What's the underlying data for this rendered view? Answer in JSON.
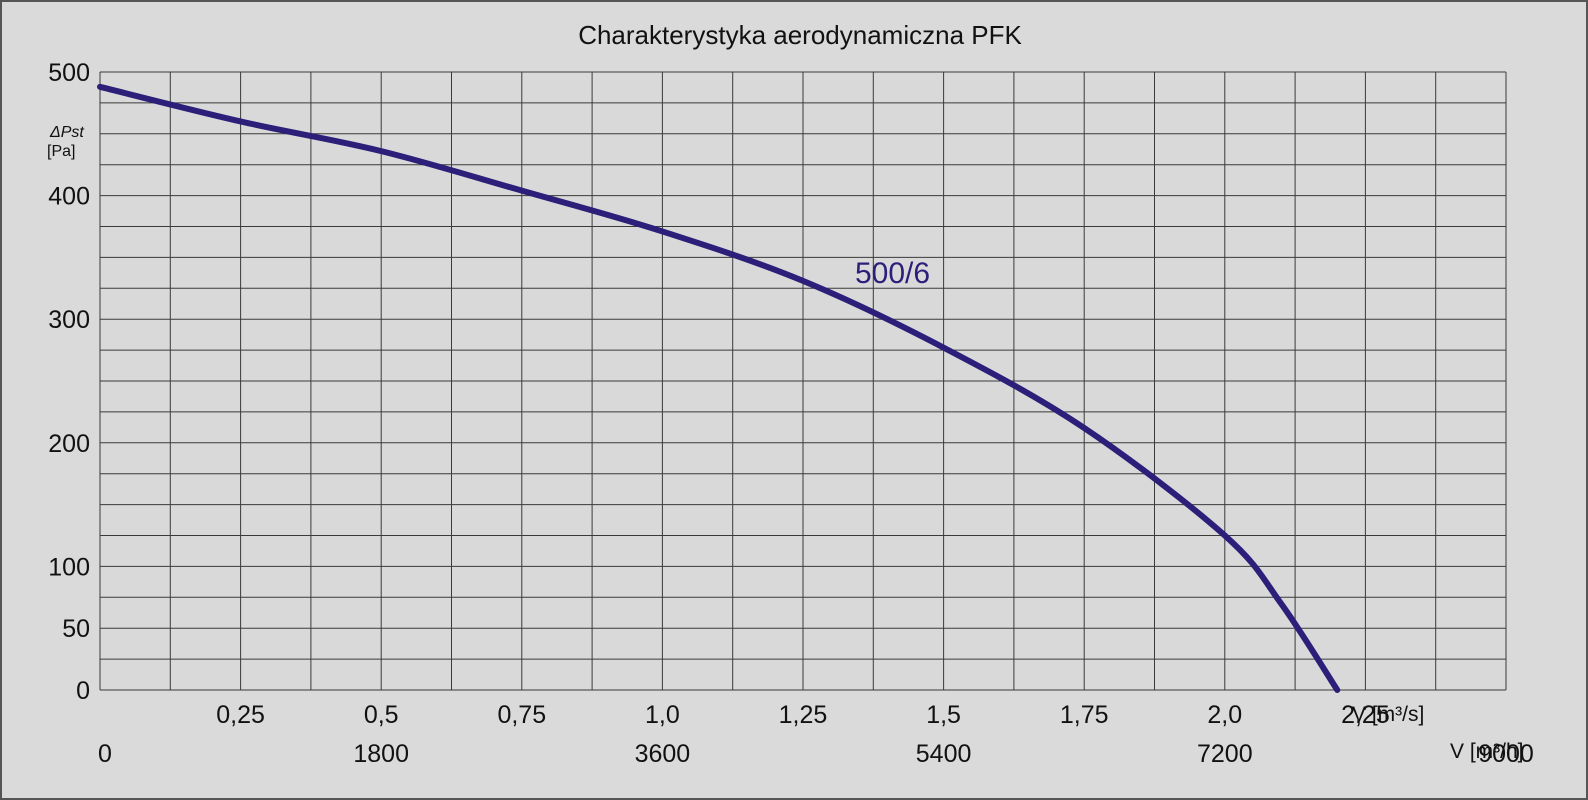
{
  "chart_data": {
    "type": "line",
    "title": "Charakterystyka aerodynamiczna PFK",
    "ylabel": {
      "symbol": "ΔPst",
      "unit": "[Pa]"
    },
    "x_axis_label": "V [m³/s]",
    "x2_axis_label": "V [m³/h]",
    "xlim": [
      0,
      2.5
    ],
    "ylim": [
      0,
      500
    ],
    "y_ticks": [
      "500",
      "400",
      "300",
      "200",
      "100",
      "50",
      "0"
    ],
    "y_tick_values": [
      500,
      400,
      300,
      200,
      100,
      50,
      0
    ],
    "x_ticks": [
      "0,25",
      "0,5",
      "0,75",
      "1,0",
      "1,25",
      "1,5",
      "1,75",
      "2,0",
      "2,25"
    ],
    "x_tick_values": [
      0.25,
      0.5,
      0.75,
      1.0,
      1.25,
      1.5,
      1.75,
      2.0,
      2.25
    ],
    "x2_ticks": [
      "0",
      "1800",
      "3600",
      "5400",
      "7200",
      "9000"
    ],
    "x2_tick_values": [
      0,
      1800,
      3600,
      5400,
      7200,
      9000
    ],
    "grid": true,
    "series": [
      {
        "name": "500/6",
        "color": "#2b1f7a",
        "x": [
          0,
          0.25,
          0.5,
          0.75,
          1.0,
          1.25,
          1.5,
          1.75,
          2.0,
          2.1,
          2.2
        ],
        "y": [
          488,
          460,
          436,
          404,
          371,
          331,
          277,
          212,
          125,
          70,
          0
        ]
      }
    ]
  }
}
